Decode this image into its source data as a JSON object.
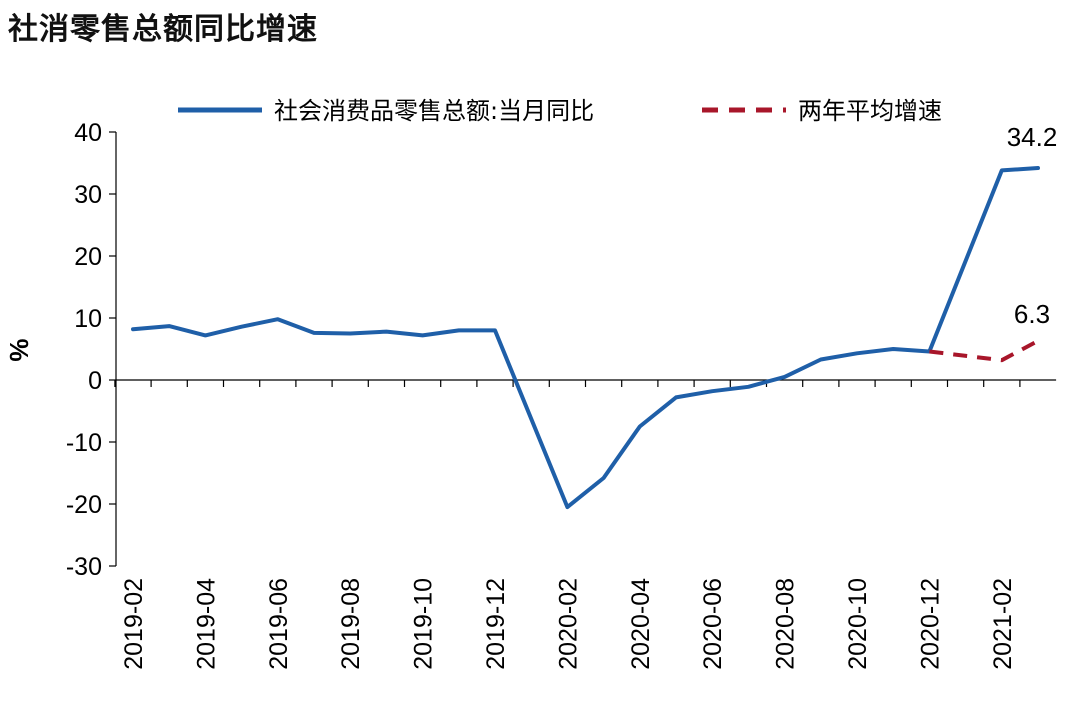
{
  "chart_data": {
    "type": "line",
    "title": "社消零售总额同比增速",
    "ylabel": "%",
    "ylim": [
      -30,
      40
    ],
    "yticks": [
      40,
      30,
      20,
      10,
      0,
      -10,
      -20,
      -30
    ],
    "x": [
      "2019-02",
      "2019-03",
      "2019-04",
      "2019-05",
      "2019-06",
      "2019-07",
      "2019-08",
      "2019-09",
      "2019-10",
      "2019-11",
      "2019-12",
      "2020-01",
      "2020-02",
      "2020-03",
      "2020-04",
      "2020-05",
      "2020-06",
      "2020-07",
      "2020-08",
      "2020-09",
      "2020-10",
      "2020-11",
      "2020-12",
      "2021-01",
      "2021-02",
      "2021-03"
    ],
    "xtick_labels": [
      "2019-02",
      "2019-04",
      "2019-06",
      "2019-08",
      "2019-10",
      "2019-12",
      "2020-02",
      "2020-04",
      "2020-06",
      "2020-08",
      "2020-10",
      "2020-12",
      "2021-02"
    ],
    "legend_placement": "top",
    "series": [
      {
        "name": "社会消费品零售总额:当月同比",
        "color": "#1f5fa8",
        "style": "solid",
        "values": [
          8.2,
          8.7,
          7.2,
          8.6,
          9.8,
          7.6,
          7.5,
          7.8,
          7.2,
          8.0,
          8.0,
          null,
          -20.5,
          -15.8,
          -7.5,
          -2.8,
          -1.8,
          -1.1,
          0.5,
          3.3,
          4.3,
          5.0,
          4.6,
          null,
          33.8,
          34.2
        ]
      },
      {
        "name": "两年平均增速",
        "color": "#a8162a",
        "style": "dashed",
        "values": [
          null,
          null,
          null,
          null,
          null,
          null,
          null,
          null,
          null,
          null,
          null,
          null,
          null,
          null,
          null,
          null,
          null,
          null,
          null,
          null,
          null,
          null,
          4.6,
          null,
          3.2,
          6.3
        ]
      }
    ],
    "annotations": [
      {
        "text": "34.2",
        "series": 0,
        "x": "2021-03",
        "y": 34.2
      },
      {
        "text": "6.3",
        "series": 1,
        "x": "2021-03",
        "y": 6.3
      }
    ],
    "grid": false
  }
}
